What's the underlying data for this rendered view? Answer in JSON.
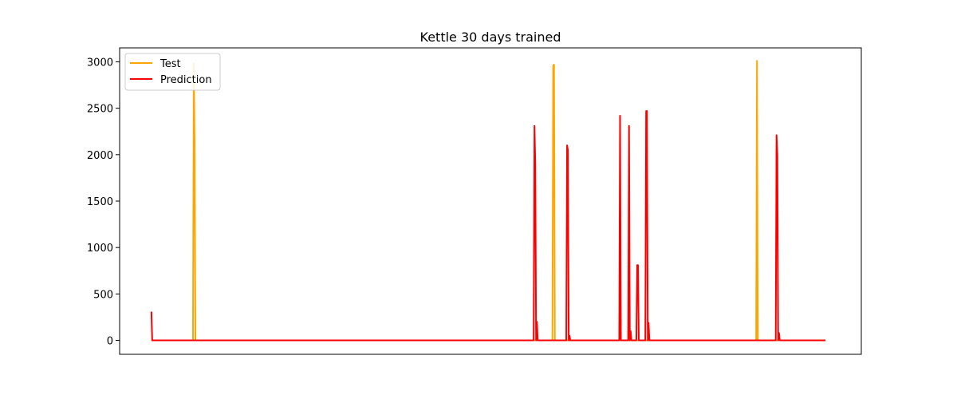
{
  "chart_data": {
    "type": "line",
    "title": "Kettle 30 days trained",
    "xlabel": "",
    "ylabel": "",
    "x_ticks_visible": false,
    "xlim": [
      -39,
      871
    ],
    "ylim": [
      -150,
      3150
    ],
    "yticks": [
      0,
      500,
      1000,
      1500,
      2000,
      2500,
      3000
    ],
    "legend_position": "top-left",
    "series": [
      {
        "name": "Test",
        "color": "#ffa500",
        "points": [
          [
            0,
            0
          ],
          [
            51,
            0
          ],
          [
            52,
            2980
          ],
          [
            53,
            2100
          ],
          [
            54,
            0
          ],
          [
            491,
            0
          ],
          [
            492,
            0
          ],
          [
            493,
            2960
          ],
          [
            494,
            2970
          ],
          [
            495,
            0
          ],
          [
            742,
            0
          ],
          [
            743,
            3010
          ],
          [
            744,
            0
          ],
          [
            827,
            0
          ]
        ]
      },
      {
        "name": "Prediction",
        "color": "#ff0000",
        "points": [
          [
            0,
            310
          ],
          [
            1,
            0
          ],
          [
            469,
            0
          ],
          [
            470,
            2310
          ],
          [
            471,
            1900
          ],
          [
            472,
            0
          ],
          [
            473,
            200
          ],
          [
            474,
            0
          ],
          [
            509,
            0
          ],
          [
            510,
            2100
          ],
          [
            511,
            2050
          ],
          [
            512,
            0
          ],
          [
            513,
            50
          ],
          [
            514,
            0
          ],
          [
            574,
            0
          ],
          [
            575,
            2420
          ],
          [
            576,
            0
          ],
          [
            585,
            0
          ],
          [
            586,
            2310
          ],
          [
            587,
            0
          ],
          [
            588,
            100
          ],
          [
            589,
            0
          ],
          [
            595,
            0
          ],
          [
            596,
            810
          ],
          [
            597,
            810
          ],
          [
            598,
            0
          ],
          [
            606,
            0
          ],
          [
            607,
            2470
          ],
          [
            608,
            2470
          ],
          [
            609,
            0
          ],
          [
            610,
            190
          ],
          [
            611,
            0
          ],
          [
            766,
            0
          ],
          [
            767,
            2210
          ],
          [
            768,
            2000
          ],
          [
            769,
            0
          ],
          [
            770,
            80
          ],
          [
            771,
            0
          ],
          [
            827,
            0
          ]
        ]
      }
    ]
  }
}
